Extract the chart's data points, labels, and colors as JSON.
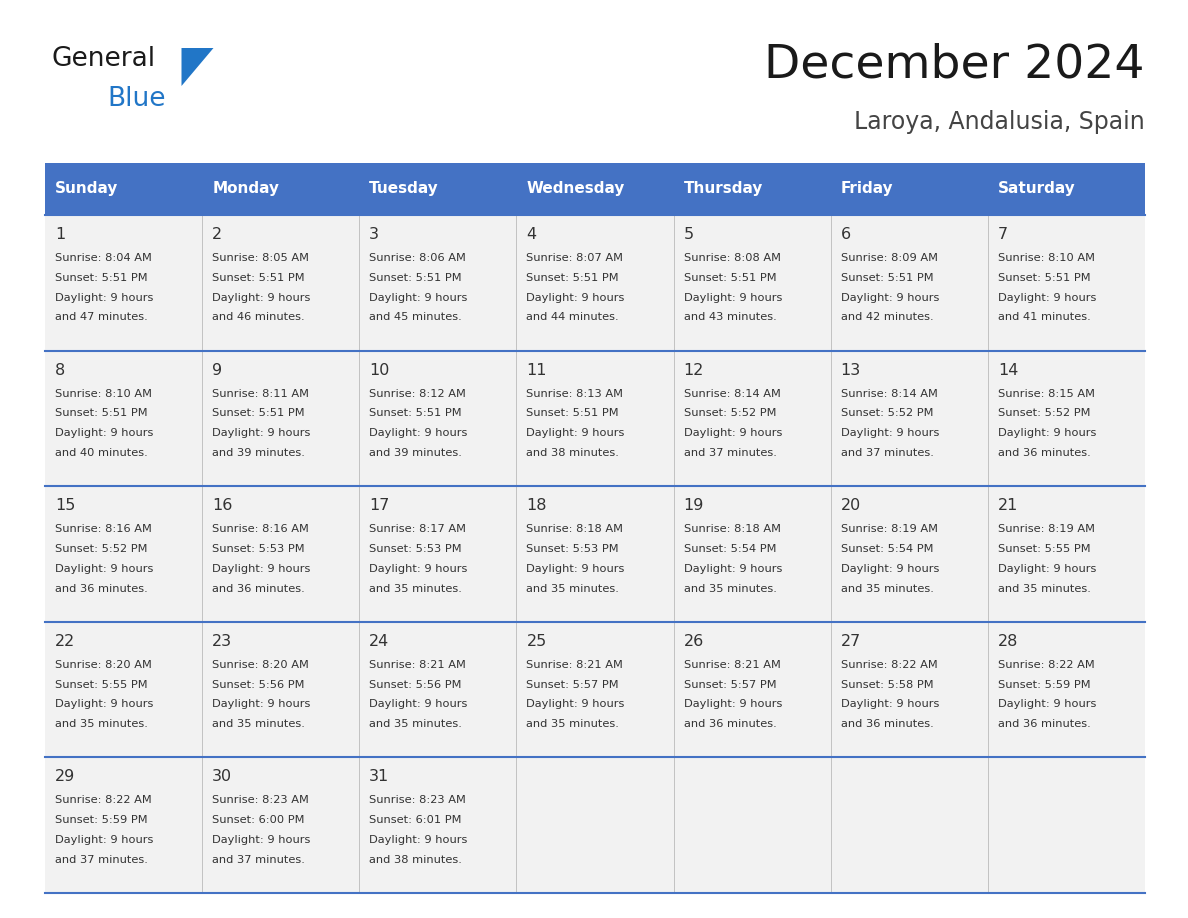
{
  "title": "December 2024",
  "subtitle": "Laroya, Andalusia, Spain",
  "header_bg_color": "#4472C4",
  "header_text_color": "#FFFFFF",
  "cell_bg_color": "#F2F2F2",
  "border_color": "#4472C4",
  "text_color": "#333333",
  "day_names": [
    "Sunday",
    "Monday",
    "Tuesday",
    "Wednesday",
    "Thursday",
    "Friday",
    "Saturday"
  ],
  "logo_general_color": "#1a1a1a",
  "logo_blue_color": "#2176C7",
  "days": [
    {
      "day": 1,
      "col": 0,
      "row": 0,
      "sunrise": "8:04 AM",
      "sunset": "5:51 PM",
      "daylight_hours": 9,
      "daylight_minutes": 47
    },
    {
      "day": 2,
      "col": 1,
      "row": 0,
      "sunrise": "8:05 AM",
      "sunset": "5:51 PM",
      "daylight_hours": 9,
      "daylight_minutes": 46
    },
    {
      "day": 3,
      "col": 2,
      "row": 0,
      "sunrise": "8:06 AM",
      "sunset": "5:51 PM",
      "daylight_hours": 9,
      "daylight_minutes": 45
    },
    {
      "day": 4,
      "col": 3,
      "row": 0,
      "sunrise": "8:07 AM",
      "sunset": "5:51 PM",
      "daylight_hours": 9,
      "daylight_minutes": 44
    },
    {
      "day": 5,
      "col": 4,
      "row": 0,
      "sunrise": "8:08 AM",
      "sunset": "5:51 PM",
      "daylight_hours": 9,
      "daylight_minutes": 43
    },
    {
      "day": 6,
      "col": 5,
      "row": 0,
      "sunrise": "8:09 AM",
      "sunset": "5:51 PM",
      "daylight_hours": 9,
      "daylight_minutes": 42
    },
    {
      "day": 7,
      "col": 6,
      "row": 0,
      "sunrise": "8:10 AM",
      "sunset": "5:51 PM",
      "daylight_hours": 9,
      "daylight_minutes": 41
    },
    {
      "day": 8,
      "col": 0,
      "row": 1,
      "sunrise": "8:10 AM",
      "sunset": "5:51 PM",
      "daylight_hours": 9,
      "daylight_minutes": 40
    },
    {
      "day": 9,
      "col": 1,
      "row": 1,
      "sunrise": "8:11 AM",
      "sunset": "5:51 PM",
      "daylight_hours": 9,
      "daylight_minutes": 39
    },
    {
      "day": 10,
      "col": 2,
      "row": 1,
      "sunrise": "8:12 AM",
      "sunset": "5:51 PM",
      "daylight_hours": 9,
      "daylight_minutes": 39
    },
    {
      "day": 11,
      "col": 3,
      "row": 1,
      "sunrise": "8:13 AM",
      "sunset": "5:51 PM",
      "daylight_hours": 9,
      "daylight_minutes": 38
    },
    {
      "day": 12,
      "col": 4,
      "row": 1,
      "sunrise": "8:14 AM",
      "sunset": "5:52 PM",
      "daylight_hours": 9,
      "daylight_minutes": 37
    },
    {
      "day": 13,
      "col": 5,
      "row": 1,
      "sunrise": "8:14 AM",
      "sunset": "5:52 PM",
      "daylight_hours": 9,
      "daylight_minutes": 37
    },
    {
      "day": 14,
      "col": 6,
      "row": 1,
      "sunrise": "8:15 AM",
      "sunset": "5:52 PM",
      "daylight_hours": 9,
      "daylight_minutes": 36
    },
    {
      "day": 15,
      "col": 0,
      "row": 2,
      "sunrise": "8:16 AM",
      "sunset": "5:52 PM",
      "daylight_hours": 9,
      "daylight_minutes": 36
    },
    {
      "day": 16,
      "col": 1,
      "row": 2,
      "sunrise": "8:16 AM",
      "sunset": "5:53 PM",
      "daylight_hours": 9,
      "daylight_minutes": 36
    },
    {
      "day": 17,
      "col": 2,
      "row": 2,
      "sunrise": "8:17 AM",
      "sunset": "5:53 PM",
      "daylight_hours": 9,
      "daylight_minutes": 35
    },
    {
      "day": 18,
      "col": 3,
      "row": 2,
      "sunrise": "8:18 AM",
      "sunset": "5:53 PM",
      "daylight_hours": 9,
      "daylight_minutes": 35
    },
    {
      "day": 19,
      "col": 4,
      "row": 2,
      "sunrise": "8:18 AM",
      "sunset": "5:54 PM",
      "daylight_hours": 9,
      "daylight_minutes": 35
    },
    {
      "day": 20,
      "col": 5,
      "row": 2,
      "sunrise": "8:19 AM",
      "sunset": "5:54 PM",
      "daylight_hours": 9,
      "daylight_minutes": 35
    },
    {
      "day": 21,
      "col": 6,
      "row": 2,
      "sunrise": "8:19 AM",
      "sunset": "5:55 PM",
      "daylight_hours": 9,
      "daylight_minutes": 35
    },
    {
      "day": 22,
      "col": 0,
      "row": 3,
      "sunrise": "8:20 AM",
      "sunset": "5:55 PM",
      "daylight_hours": 9,
      "daylight_minutes": 35
    },
    {
      "day": 23,
      "col": 1,
      "row": 3,
      "sunrise": "8:20 AM",
      "sunset": "5:56 PM",
      "daylight_hours": 9,
      "daylight_minutes": 35
    },
    {
      "day": 24,
      "col": 2,
      "row": 3,
      "sunrise": "8:21 AM",
      "sunset": "5:56 PM",
      "daylight_hours": 9,
      "daylight_minutes": 35
    },
    {
      "day": 25,
      "col": 3,
      "row": 3,
      "sunrise": "8:21 AM",
      "sunset": "5:57 PM",
      "daylight_hours": 9,
      "daylight_minutes": 35
    },
    {
      "day": 26,
      "col": 4,
      "row": 3,
      "sunrise": "8:21 AM",
      "sunset": "5:57 PM",
      "daylight_hours": 9,
      "daylight_minutes": 36
    },
    {
      "day": 27,
      "col": 5,
      "row": 3,
      "sunrise": "8:22 AM",
      "sunset": "5:58 PM",
      "daylight_hours": 9,
      "daylight_minutes": 36
    },
    {
      "day": 28,
      "col": 6,
      "row": 3,
      "sunrise": "8:22 AM",
      "sunset": "5:59 PM",
      "daylight_hours": 9,
      "daylight_minutes": 36
    },
    {
      "day": 29,
      "col": 0,
      "row": 4,
      "sunrise": "8:22 AM",
      "sunset": "5:59 PM",
      "daylight_hours": 9,
      "daylight_minutes": 37
    },
    {
      "day": 30,
      "col": 1,
      "row": 4,
      "sunrise": "8:23 AM",
      "sunset": "6:00 PM",
      "daylight_hours": 9,
      "daylight_minutes": 37
    },
    {
      "day": 31,
      "col": 2,
      "row": 4,
      "sunrise": "8:23 AM",
      "sunset": "6:01 PM",
      "daylight_hours": 9,
      "daylight_minutes": 38
    }
  ]
}
